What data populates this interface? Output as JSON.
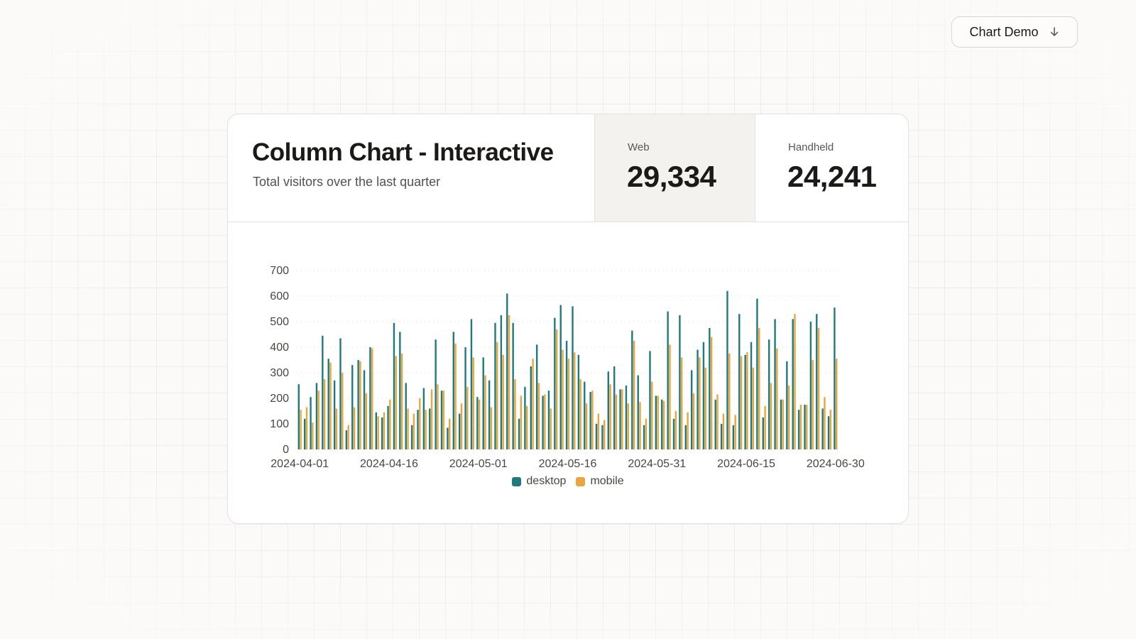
{
  "header_button": {
    "label": "Chart Demo",
    "icon": "arrow-down-icon"
  },
  "card": {
    "title": "Column Chart - Interactive",
    "subtitle": "Total visitors over the last quarter",
    "stats": [
      {
        "label": "Web",
        "value": "29,334",
        "active": true
      },
      {
        "label": "Handheld",
        "value": "24,241",
        "active": false
      }
    ]
  },
  "colors": {
    "desktop": "#1f7a7e",
    "mobile": "#eaa63a"
  },
  "chart_data": {
    "type": "bar",
    "title": "",
    "xlabel": "",
    "ylabel": "",
    "ylim": [
      0,
      700
    ],
    "yticks": [
      0,
      100,
      200,
      300,
      400,
      500,
      600,
      700
    ],
    "xtick_labels": [
      "2024-04-01",
      "2024-04-16",
      "2024-05-01",
      "2024-05-16",
      "2024-05-31",
      "2024-06-15",
      "2024-06-30"
    ],
    "grid": true,
    "legend_position": "bottom",
    "start_date": "2024-04-01",
    "series": [
      {
        "name": "desktop",
        "values": [
          255,
          120,
          205,
          260,
          445,
          355,
          270,
          435,
          75,
          330,
          350,
          310,
          400,
          145,
          125,
          170,
          495,
          460,
          260,
          95,
          155,
          240,
          160,
          430,
          230,
          85,
          460,
          140,
          400,
          510,
          205,
          360,
          270,
          495,
          525,
          610,
          495,
          120,
          245,
          325,
          410,
          210,
          230,
          515,
          565,
          425,
          560,
          370,
          265,
          225,
          100,
          95,
          305,
          325,
          235,
          250,
          465,
          290,
          95,
          385,
          210,
          195,
          540,
          120,
          525,
          95,
          310,
          390,
          420,
          475,
          195,
          100,
          620,
          95,
          530,
          370,
          420,
          590,
          125,
          430,
          510,
          195,
          345,
          510,
          155,
          175,
          500,
          530,
          160,
          130,
          555
        ]
      },
      {
        "name": "mobile",
        "values": [
          155,
          165,
          105,
          230,
          275,
          340,
          160,
          300,
          95,
          165,
          345,
          220,
          395,
          130,
          145,
          195,
          365,
          375,
          160,
          140,
          200,
          155,
          235,
          255,
          230,
          120,
          415,
          180,
          245,
          360,
          195,
          290,
          165,
          420,
          370,
          525,
          275,
          210,
          170,
          355,
          260,
          215,
          160,
          470,
          390,
          355,
          380,
          275,
          180,
          230,
          140,
          115,
          255,
          215,
          235,
          180,
          425,
          185,
          120,
          265,
          210,
          190,
          410,
          150,
          360,
          145,
          220,
          360,
          320,
          440,
          215,
          140,
          375,
          135,
          365,
          380,
          320,
          475,
          170,
          260,
          395,
          195,
          250,
          530,
          175,
          175,
          350,
          475,
          205,
          155,
          355
        ]
      }
    ]
  }
}
